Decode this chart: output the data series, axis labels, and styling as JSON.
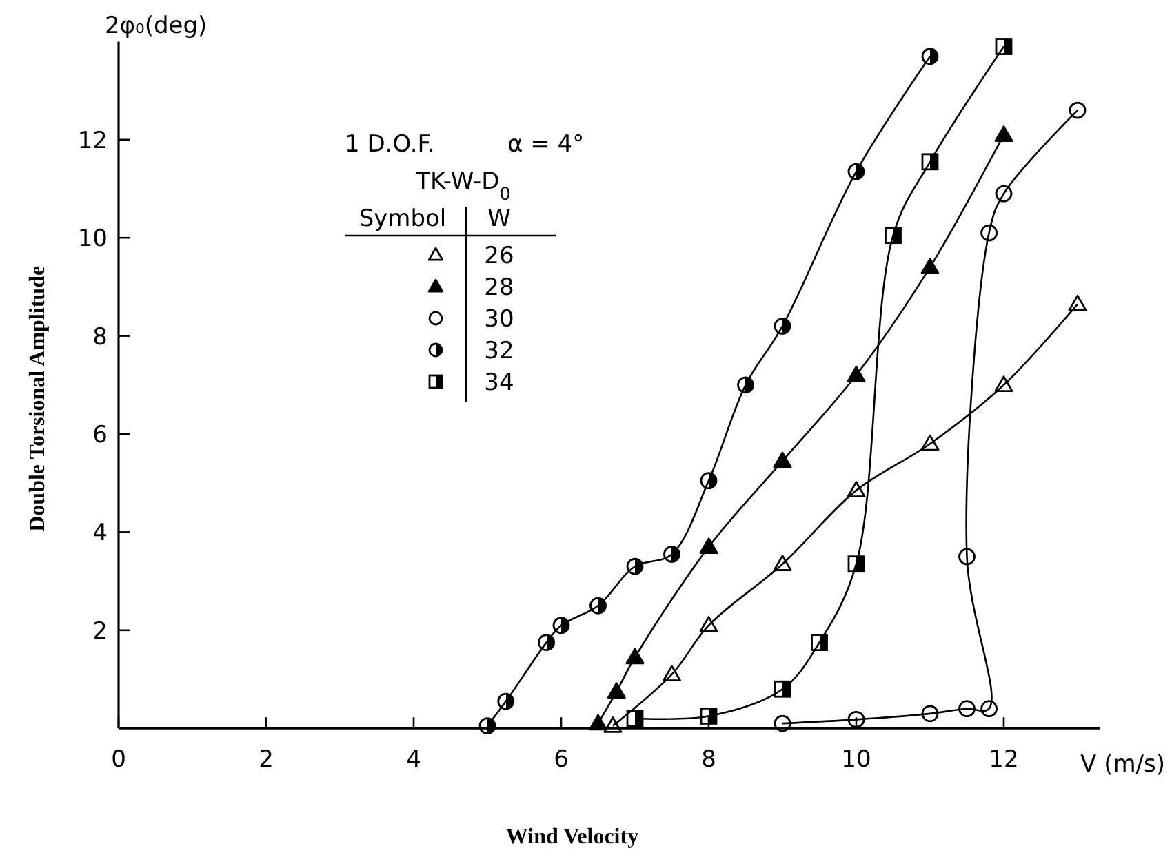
{
  "chart_data": {
    "type": "line",
    "xlabel": "Wind Velocity",
    "ylabel": "Double Torsional Amplitude",
    "legend_title": "W",
    "legend": "top left",
    "annotations": [
      "1 D.O.F.",
      "α = 4°",
      "TK-W-D$_{0}$",
      "Symbol",
      "2φ₀(deg)",
      "V (m/s)"
    ],
    "xlim": [
      0,
      13.3
    ],
    "xticks": [
      0,
      2,
      4,
      6,
      8,
      10,
      12
    ],
    "ylim": [
      0,
      14
    ],
    "yticks": [
      2,
      4,
      6,
      8,
      10,
      12
    ],
    "grid": false,
    "series": [
      {
        "name": "26",
        "color": "#000000",
        "marker": "triangle",
        "x": [
          6.7,
          7.5,
          8,
          9,
          10,
          11,
          12,
          13
        ],
        "values": [
          0.05,
          1.1,
          2.1,
          3.35,
          4.85,
          5.8,
          7,
          8.65
        ]
      },
      {
        "name": "28",
        "color": "#000000",
        "marker": "triangle",
        "x": [
          6.5,
          6.75,
          7,
          8,
          9,
          10,
          11,
          12
        ],
        "values": [
          0.1,
          0.75,
          1.45,
          3.7,
          5.45,
          7.2,
          9.4,
          12.1
        ]
      },
      {
        "name": "30",
        "color": "#000000",
        "marker": "circle",
        "x": [
          9,
          10,
          11,
          11.5,
          11.8,
          11.5,
          11.8,
          12,
          13
        ],
        "values": [
          0.1,
          0.18,
          0.3,
          0.4,
          0.4,
          3.5,
          10.1,
          10.9,
          12.6
        ]
      },
      {
        "name": "32",
        "color": "#000000",
        "marker": "circle",
        "x": [
          5,
          5.25,
          5.8,
          6,
          6.5,
          7,
          7.5,
          8,
          8.5,
          9,
          10,
          11
        ],
        "values": [
          0.05,
          0.55,
          1.75,
          2.1,
          2.5,
          3.3,
          3.55,
          5.05,
          7,
          8.2,
          11.35,
          13.7
        ]
      },
      {
        "name": "34",
        "color": "#000000",
        "marker": "square",
        "x": [
          7,
          8,
          9,
          9.5,
          10,
          10.5,
          11,
          12
        ],
        "values": [
          0.2,
          0.25,
          0.8,
          1.75,
          3.35,
          10.05,
          11.55,
          13.9
        ]
      }
    ]
  }
}
